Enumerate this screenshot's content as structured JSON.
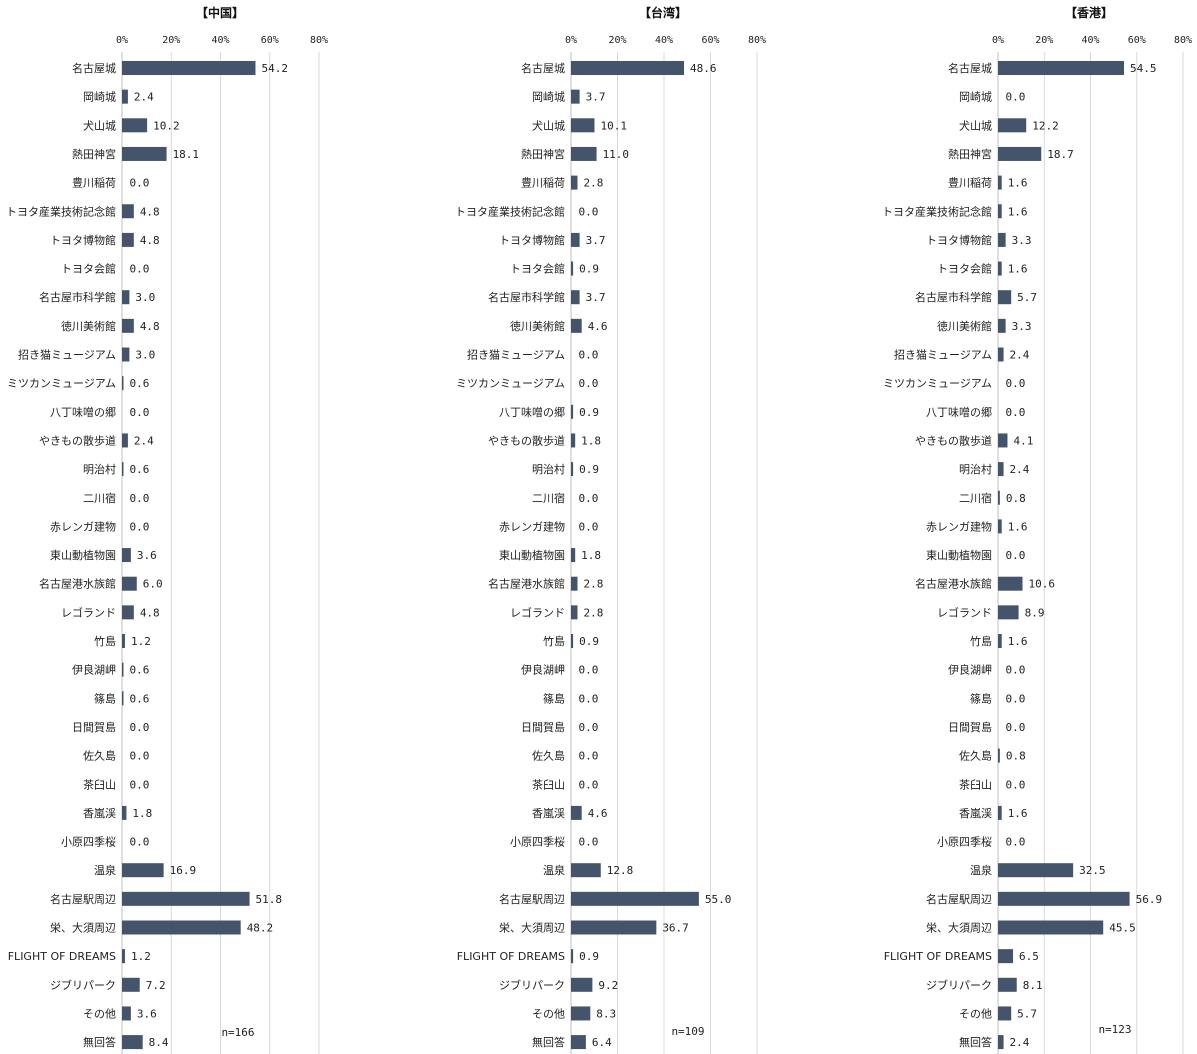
{
  "chart_data": [
    {
      "type": "bar",
      "orientation": "horizontal",
      "title": "【中国】",
      "categories": [
        "名古屋城",
        "岡崎城",
        "犬山城",
        "熱田神宮",
        "豊川稲荷",
        "トヨタ産業技術記念館",
        "トヨタ博物館",
        "トヨタ会館",
        "名古屋市科学館",
        "徳川美術館",
        "招き猫ミュージアム",
        "ミツカンミュージアム",
        "八丁味噌の郷",
        "やきもの散歩道",
        "明治村",
        "二川宿",
        "赤レンガ建物",
        "東山動植物園",
        "名古屋港水族館",
        "レゴランド",
        "竹島",
        "伊良湖岬",
        "篠島",
        "日間賀島",
        "佐久島",
        "茶臼山",
        "香嵐渓",
        "小原四季桜",
        "温泉",
        "名古屋駅周辺",
        "栄、大須周辺",
        "FLIGHT OF DREAMS",
        "ジブリパーク",
        "その他",
        "無回答"
      ],
      "values": [
        54.2,
        2.4,
        10.2,
        18.1,
        0.0,
        4.8,
        4.8,
        0.0,
        3.0,
        4.8,
        3.0,
        0.6,
        0.0,
        2.4,
        0.6,
        0.0,
        0.0,
        3.6,
        6.0,
        4.8,
        1.2,
        0.6,
        0.6,
        0.0,
        0.0,
        0.0,
        1.8,
        0.0,
        16.9,
        51.8,
        48.2,
        1.2,
        7.2,
        3.6,
        8.4
      ],
      "xticks": [
        "0%",
        "20%",
        "40%",
        "60%",
        "80%"
      ],
      "xlim": [
        0,
        80
      ],
      "n_label": "n=166",
      "bar_color": "#44546a",
      "grid": true
    },
    {
      "type": "bar",
      "orientation": "horizontal",
      "title": "【台湾】",
      "categories": [
        "名古屋城",
        "岡崎城",
        "犬山城",
        "熱田神宮",
        "豊川稲荷",
        "トヨタ産業技術記念館",
        "トヨタ博物館",
        "トヨタ会館",
        "名古屋市科学館",
        "徳川美術館",
        "招き猫ミュージアム",
        "ミツカンミュージアム",
        "八丁味噌の郷",
        "やきもの散歩道",
        "明治村",
        "二川宿",
        "赤レンガ建物",
        "東山動植物園",
        "名古屋港水族館",
        "レゴランド",
        "竹島",
        "伊良湖岬",
        "篠島",
        "日間賀島",
        "佐久島",
        "茶臼山",
        "香嵐渓",
        "小原四季桜",
        "温泉",
        "名古屋駅周辺",
        "栄、大須周辺",
        "FLIGHT OF DREAMS",
        "ジブリパーク",
        "その他",
        "無回答"
      ],
      "values": [
        48.6,
        3.7,
        10.1,
        11.0,
        2.8,
        0.0,
        3.7,
        0.9,
        3.7,
        4.6,
        0.0,
        0.0,
        0.9,
        1.8,
        0.9,
        0.0,
        0.0,
        1.8,
        2.8,
        2.8,
        0.9,
        0.0,
        0.0,
        0.0,
        0.0,
        0.0,
        4.6,
        0.0,
        12.8,
        55.0,
        36.7,
        0.9,
        9.2,
        8.3,
        6.4
      ],
      "xticks": [
        "0%",
        "20%",
        "40%",
        "60%",
        "80%"
      ],
      "xlim": [
        0,
        80
      ],
      "n_label": "n=109",
      "bar_color": "#44546a",
      "grid": true
    },
    {
      "type": "bar",
      "orientation": "horizontal",
      "title": "【香港】",
      "categories": [
        "名古屋城",
        "岡崎城",
        "犬山城",
        "熱田神宮",
        "豊川稲荷",
        "トヨタ産業技術記念館",
        "トヨタ博物館",
        "トヨタ会館",
        "名古屋市科学館",
        "徳川美術館",
        "招き猫ミュージアム",
        "ミツカンミュージアム",
        "八丁味噌の郷",
        "やきもの散歩道",
        "明治村",
        "二川宿",
        "赤レンガ建物",
        "東山動植物園",
        "名古屋港水族館",
        "レゴランド",
        "竹島",
        "伊良湖岬",
        "篠島",
        "日間賀島",
        "佐久島",
        "茶臼山",
        "香嵐渓",
        "小原四季桜",
        "温泉",
        "名古屋駅周辺",
        "栄、大須周辺",
        "FLIGHT OF DREAMS",
        "ジブリパーク",
        "その他",
        "無回答"
      ],
      "values": [
        54.5,
        0.0,
        12.2,
        18.7,
        1.6,
        1.6,
        3.3,
        1.6,
        5.7,
        3.3,
        2.4,
        0.0,
        0.0,
        4.1,
        2.4,
        0.8,
        1.6,
        0.0,
        10.6,
        8.9,
        1.6,
        0.0,
        0.0,
        0.0,
        0.8,
        0.0,
        1.6,
        0.0,
        32.5,
        56.9,
        45.5,
        6.5,
        8.1,
        5.7,
        2.4
      ],
      "xticks": [
        "0%",
        "20%",
        "40%",
        "60%",
        "80%"
      ],
      "xlim": [
        0,
        80
      ],
      "n_label": "n=123",
      "bar_color": "#44546a",
      "grid": true
    }
  ]
}
